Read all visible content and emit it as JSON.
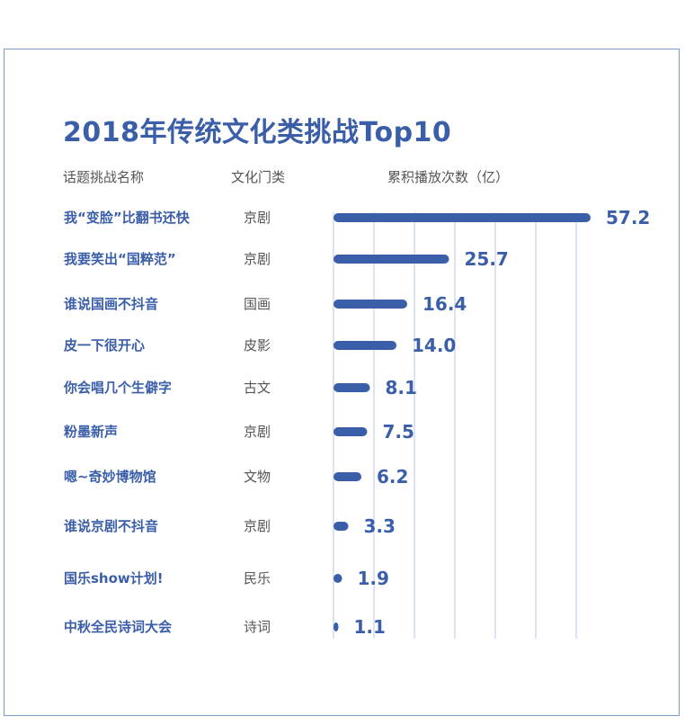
{
  "header": {
    "title": "2018年传统文化类挑战Top10",
    "col_name": "话题挑战名称",
    "col_category": "文化门类",
    "col_plays": "累积播放次数（亿）"
  },
  "colors": {
    "bar": "#3a5ea8",
    "grid": "#b9c7e4",
    "frame": "#7aa0c8"
  },
  "chart_data": {
    "type": "bar",
    "orientation": "horizontal",
    "title": "2018年传统文化类挑战Top10",
    "xlabel": "累积播放次数（亿）",
    "ylabel": "话题挑战名称",
    "xlim": [
      0,
      60
    ],
    "grid": true,
    "categories": [
      "我“变脸”比翻书还快",
      "我要笑出“国粹范”",
      "谁说国画不抖音",
      "皮一下很开心",
      "你会唱几个生僻字",
      "粉墨新声",
      "嗯~奇妙博物馆",
      "谁说京剧不抖音",
      "国乐show计划!",
      "中秋全民诗词大会"
    ],
    "culture_types": [
      "京剧",
      "京剧",
      "国画",
      "皮影",
      "古文",
      "京剧",
      "文物",
      "京剧",
      "民乐",
      "诗词"
    ],
    "values": [
      57.2,
      25.7,
      16.4,
      14.0,
      8.1,
      7.5,
      6.2,
      3.3,
      1.9,
      1.1
    ],
    "value_labels": [
      "57.2",
      "25.7",
      "16.4",
      "14.0",
      "8.1",
      "7.5",
      "6.2",
      "3.3",
      "1.9",
      "1.1"
    ]
  }
}
